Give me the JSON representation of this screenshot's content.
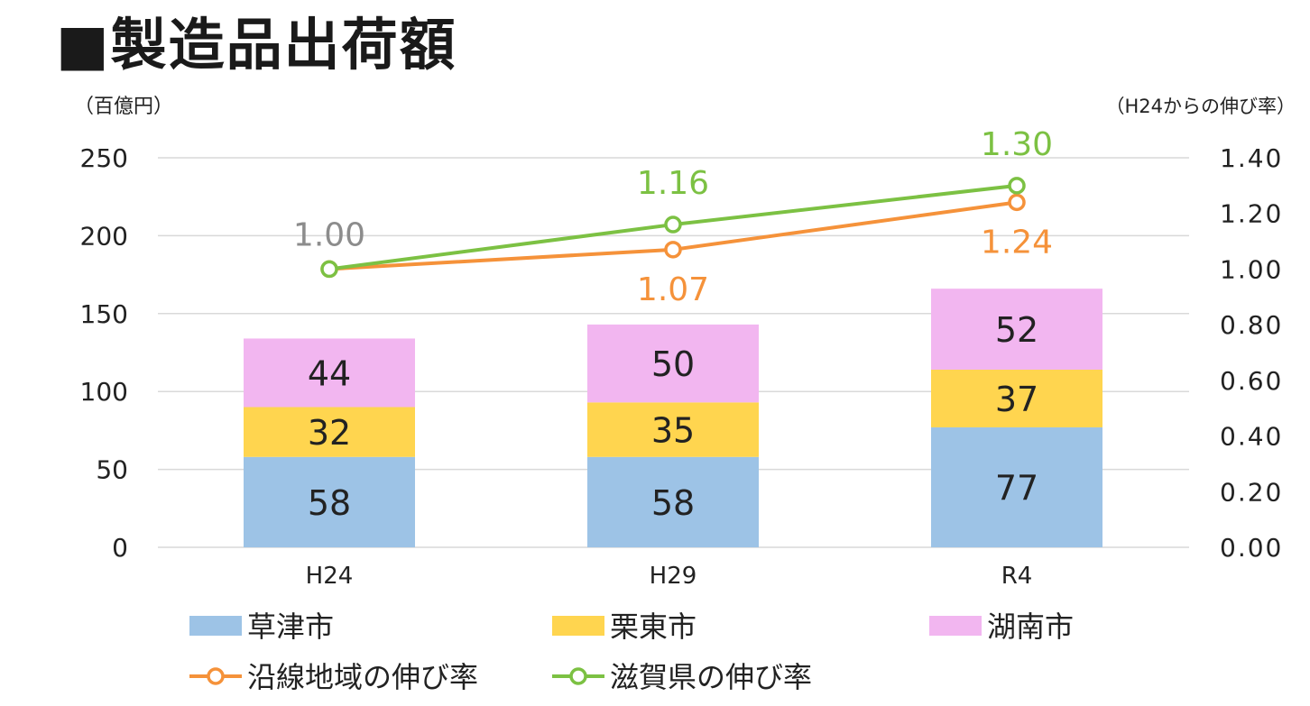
{
  "title": "■製造品出荷額",
  "chart_data": {
    "type": "bar",
    "stacked": true,
    "categories": [
      "H24",
      "H29",
      "R4"
    ],
    "series": [
      {
        "name": "草津市",
        "values": [
          58,
          58,
          77
        ],
        "color": "#9dc3e6"
      },
      {
        "name": "栗東市",
        "values": [
          32,
          35,
          37
        ],
        "color": "#ffd54f"
      },
      {
        "name": "湖南市",
        "values": [
          44,
          50,
          52
        ],
        "color": "#f2b6f0"
      }
    ],
    "line_series": [
      {
        "name": "沿線地域の伸び率",
        "values": [
          1.0,
          1.07,
          1.24
        ],
        "labels": [
          "1.00",
          "1.07",
          "1.24"
        ],
        "color": "#f5923a"
      },
      {
        "name": "滋賀県の伸び率",
        "values": [
          1.0,
          1.16,
          1.3
        ],
        "labels": [
          "1.00",
          "1.16",
          "1.30"
        ],
        "color": "#7cc143"
      }
    ],
    "left_axis": {
      "label": "（百億円）",
      "ylim": [
        0,
        250
      ],
      "ticks": [
        "0",
        "50",
        "100",
        "150",
        "200",
        "250"
      ]
    },
    "right_axis": {
      "label": "（H24からの伸び率）",
      "ylim": [
        0.0,
        1.4
      ],
      "ticks": [
        "0.00",
        "0.20",
        "0.40",
        "0.60",
        "0.80",
        "1.00",
        "1.20",
        "1.40"
      ]
    },
    "grid": true,
    "legend": "bottom"
  }
}
